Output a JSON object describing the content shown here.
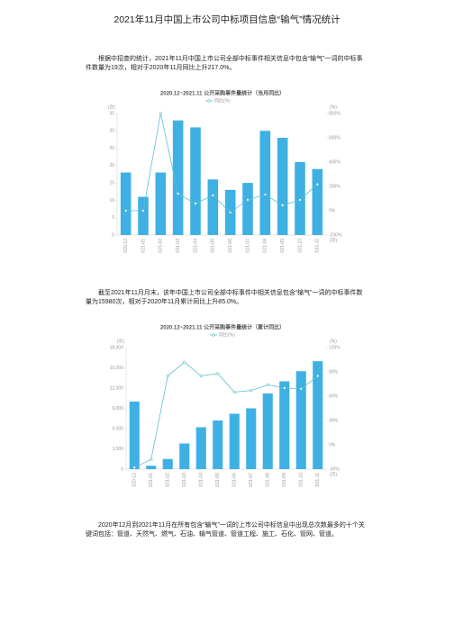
{
  "title": "2021年11月中国上市公司中标项目信息“输气”情况统计",
  "paragraphs": [
    "根据中招查的统计，2021年11月中国上市公司全部中标事件相关信息中包含“输气”一词的中标事件数量为19次，相对于2020年11月同比上升217.0%。",
    "截至2021年11月月末，该年中国上市公司全部中标事件中相关信息包含“输气”一词的中标事件数量为15980次，相对于2020年11月累计同比上升85.0%。",
    "2020年12月到2021年11月在所有包含“输气”一词的上市公司中标信息中出现总次数最多的十个关键词包括：管道、天然气、燃气、石油、输气管道、管道工程、施工、石化、管网、管道。"
  ],
  "chart_data": [
    {
      "type": "bar",
      "title": "2020.12~2021.11 公开采购事件量统计（当月同比）",
      "categories": [
        "2020-12",
        "2021-01",
        "2021-02",
        "2021-03",
        "2021-04",
        "2021-05",
        "2021-06",
        "2021-07",
        "2021-08",
        "2021-09",
        "2021-10",
        "2021-11"
      ],
      "series": [
        {
          "color": "#3fb0e3",
          "values": [
            18,
            11,
            18,
            33,
            31,
            16,
            13,
            15,
            30,
            28,
            21,
            19
          ]
        },
        {
          "name": "同比(%)",
          "color": "#5bbfcf",
          "axis": "y2",
          "values": [
            0,
            0,
            800,
            140,
            59,
            126,
            -15,
            89,
            133,
            44,
            89,
            217
          ]
        }
      ],
      "y_label": "(次)",
      "y2_label": "(%)",
      "x_label": "(月)",
      "ylim": [
        0,
        35
      ],
      "yticks": [
        0,
        5,
        10,
        15,
        20,
        25,
        30,
        35
      ],
      "y2lim": [
        -200,
        800
      ],
      "y2ticks": [
        {
          "value": -200,
          "label": "-200%"
        },
        {
          "value": 0,
          "label": "0%"
        },
        {
          "value": 200,
          "label": "200%"
        },
        {
          "value": 400,
          "label": "400%"
        },
        {
          "value": 600,
          "label": "600%"
        },
        {
          "value": 800,
          "label": "800%"
        }
      ],
      "grid": false
    },
    {
      "type": "bar",
      "title": "2020.12~2021.11 公开采购事件量统计（累计同比）",
      "categories": [
        "2020-12",
        "2021-01",
        "2021-02",
        "2021-03",
        "2021-04",
        "2021-05",
        "2021-06",
        "2021-07",
        "2021-08",
        "2021-09",
        "2021-10",
        "2021-11"
      ],
      "series": [
        {
          "color": "#3fb0e3",
          "values": [
            10000,
            500,
            1500,
            3800,
            6200,
            7200,
            8200,
            9000,
            11200,
            13000,
            14500,
            15980
          ]
        },
        {
          "name": "同比(%)",
          "color": "#5bbfcf",
          "axis": "y2",
          "values": [
            -28,
            -18,
            85,
            102,
            85,
            88,
            65,
            67,
            74,
            70,
            69,
            85
          ]
        }
      ],
      "y_label": "(次)",
      "y2_label": "(%)",
      "x_label": "(月)",
      "ylim": [
        0,
        18000
      ],
      "yticks": [
        0,
        {
          "value": 3000,
          "label": "3,000"
        },
        {
          "value": 6000,
          "label": "6,000"
        },
        {
          "value": 9000,
          "label": "9,000"
        },
        {
          "value": 12000,
          "label": "12,000"
        },
        {
          "value": 15000,
          "label": "15,000"
        },
        {
          "value": 18000,
          "label": "18,000"
        }
      ],
      "y2lim": [
        -30,
        120
      ],
      "y2ticks": [
        {
          "value": -30,
          "label": "-30%"
        },
        {
          "value": 0,
          "label": "0%"
        },
        {
          "value": 30,
          "label": "30%"
        },
        {
          "value": 60,
          "label": "60%"
        },
        {
          "value": 90,
          "label": "90%"
        },
        {
          "value": 120,
          "label": "120%"
        }
      ],
      "grid": false
    }
  ]
}
